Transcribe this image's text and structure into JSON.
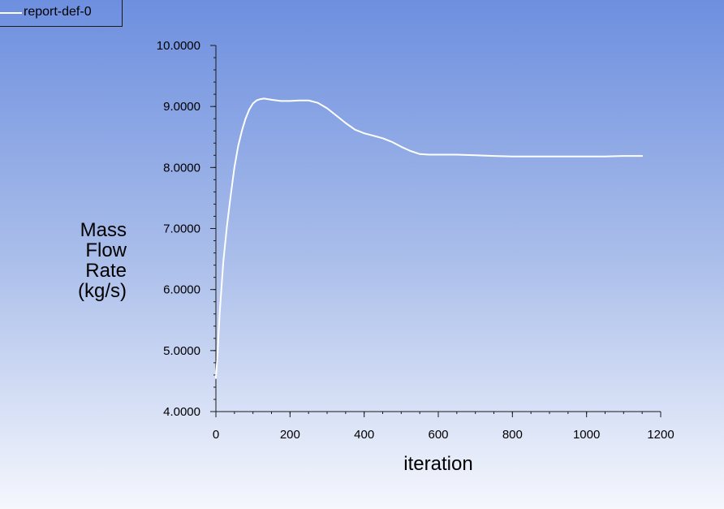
{
  "legend": {
    "label": "report-def-0"
  },
  "colors": {
    "series_line": "#ffffff",
    "axis": "#1a1a1a",
    "text": "#000000"
  },
  "chart_data": {
    "type": "line",
    "title": "",
    "xlabel": "iteration",
    "ylabel_lines": [
      "Mass",
      "Flow",
      "Rate",
      "(kg/s)"
    ],
    "xlim": [
      0,
      1200
    ],
    "ylim": [
      4.0,
      10.0
    ],
    "x_ticks": [
      0,
      200,
      400,
      600,
      800,
      1000,
      1200
    ],
    "x_tick_labels": [
      "0",
      "200",
      "400",
      "600",
      "800",
      "1000",
      "1200"
    ],
    "y_ticks": [
      4,
      5,
      6,
      7,
      8,
      9,
      10
    ],
    "y_tick_labels": [
      "4.0000",
      "5.0000",
      "6.0000",
      "7.0000",
      "8.0000",
      "9.0000",
      "10.0000"
    ],
    "grid": false,
    "legend_position": "top-left",
    "series": [
      {
        "name": "report-def-0",
        "x": [
          0,
          5,
          10,
          20,
          30,
          40,
          50,
          60,
          70,
          80,
          90,
          100,
          110,
          120,
          130,
          140,
          150,
          175,
          200,
          225,
          250,
          275,
          300,
          325,
          350,
          375,
          400,
          425,
          450,
          475,
          500,
          525,
          550,
          575,
          600,
          650,
          700,
          750,
          800,
          850,
          900,
          950,
          1000,
          1050,
          1100,
          1150
        ],
        "y": [
          4.55,
          5.0,
          5.6,
          6.45,
          7.05,
          7.55,
          8.0,
          8.35,
          8.6,
          8.8,
          8.95,
          9.05,
          9.1,
          9.12,
          9.13,
          9.12,
          9.11,
          9.09,
          9.09,
          9.1,
          9.1,
          9.06,
          8.97,
          8.85,
          8.73,
          8.62,
          8.56,
          8.52,
          8.48,
          8.42,
          8.34,
          8.27,
          8.22,
          8.21,
          8.21,
          8.21,
          8.2,
          8.19,
          8.18,
          8.18,
          8.18,
          8.18,
          8.18,
          8.18,
          8.19,
          8.19
        ]
      }
    ]
  }
}
